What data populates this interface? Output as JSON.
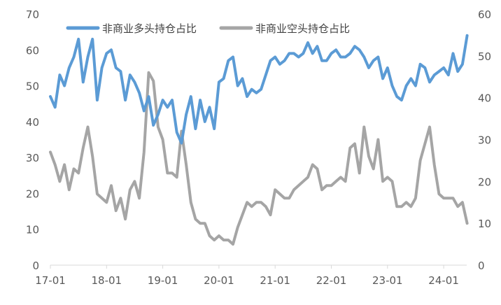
{
  "chart_data": {
    "type": "line",
    "x_ticks": [
      "17-01",
      "18-01",
      "19-01",
      "20-01",
      "21-01",
      "22-01",
      "23-01",
      "24-01"
    ],
    "y_left": {
      "ticks": [
        0,
        10,
        20,
        30,
        40,
        50,
        60,
        70
      ],
      "min": 0,
      "max": 70
    },
    "y_right": {
      "ticks": [
        0,
        10,
        20,
        30,
        40,
        50,
        60
      ],
      "min": 0,
      "max": 60
    },
    "legend_position": "top-center",
    "grid": false,
    "series": [
      {
        "name": "非商业多头持仓占比",
        "axis": "left",
        "color": "#5B9BD5",
        "x": [
          "2017-01",
          "2017-02",
          "2017-03",
          "2017-04",
          "2017-05",
          "2017-06",
          "2017-07",
          "2017-08",
          "2017-09",
          "2017-10",
          "2017-11",
          "2017-12",
          "2018-01",
          "2018-02",
          "2018-03",
          "2018-04",
          "2018-05",
          "2018-06",
          "2018-07",
          "2018-08",
          "2018-09",
          "2018-10",
          "2018-11",
          "2018-12",
          "2019-01",
          "2019-02",
          "2019-03",
          "2019-04",
          "2019-05",
          "2019-06",
          "2019-07",
          "2019-08",
          "2019-09",
          "2019-10",
          "2019-11",
          "2019-12",
          "2020-01",
          "2020-02",
          "2020-03",
          "2020-04",
          "2020-05",
          "2020-06",
          "2020-07",
          "2020-08",
          "2020-09",
          "2020-10",
          "2020-11",
          "2020-12",
          "2021-01",
          "2021-02",
          "2021-03",
          "2021-04",
          "2021-05",
          "2021-06",
          "2021-07",
          "2021-08",
          "2021-09",
          "2021-10",
          "2021-11",
          "2021-12",
          "2022-01",
          "2022-02",
          "2022-03",
          "2022-04",
          "2022-05",
          "2022-06",
          "2022-07",
          "2022-08",
          "2022-09",
          "2022-10",
          "2022-11",
          "2022-12",
          "2023-01",
          "2023-02",
          "2023-03",
          "2023-04",
          "2023-05",
          "2023-06",
          "2023-07",
          "2023-08",
          "2023-09",
          "2023-10",
          "2023-11",
          "2023-12",
          "2024-01",
          "2024-02",
          "2024-03",
          "2024-04",
          "2024-05",
          "2024-06"
        ],
        "values": [
          47,
          44,
          53,
          50,
          55,
          58,
          63,
          51,
          58,
          63,
          46,
          55,
          59,
          60,
          55,
          54,
          46,
          53,
          51,
          48,
          43,
          47,
          39,
          42,
          46,
          44,
          46,
          37,
          34,
          42,
          47,
          38,
          46,
          40,
          44,
          38,
          51,
          52,
          57,
          58,
          50,
          52,
          47,
          49,
          48,
          49,
          53,
          57,
          58,
          56,
          57,
          59,
          59,
          58,
          59,
          62,
          59,
          61,
          57,
          57,
          59,
          60,
          58,
          58,
          59,
          61,
          60,
          58,
          55,
          57,
          58,
          52,
          55,
          50,
          47,
          46,
          50,
          52,
          50,
          56,
          55,
          51,
          53,
          54,
          55,
          53,
          59,
          54,
          56,
          64
        ]
      },
      {
        "name": "非商业空头持仓占比",
        "axis": "right",
        "color": "#A5A5A5",
        "x": [
          "2017-01",
          "2017-02",
          "2017-03",
          "2017-04",
          "2017-05",
          "2017-06",
          "2017-07",
          "2017-08",
          "2017-09",
          "2017-10",
          "2017-11",
          "2017-12",
          "2018-01",
          "2018-02",
          "2018-03",
          "2018-04",
          "2018-05",
          "2018-06",
          "2018-07",
          "2018-08",
          "2018-09",
          "2018-10",
          "2018-11",
          "2018-12",
          "2019-01",
          "2019-02",
          "2019-03",
          "2019-04",
          "2019-05",
          "2019-06",
          "2019-07",
          "2019-08",
          "2019-09",
          "2019-10",
          "2019-11",
          "2019-12",
          "2020-01",
          "2020-02",
          "2020-03",
          "2020-04",
          "2020-05",
          "2020-06",
          "2020-07",
          "2020-08",
          "2020-09",
          "2020-10",
          "2020-11",
          "2020-12",
          "2021-01",
          "2021-02",
          "2021-03",
          "2021-04",
          "2021-05",
          "2021-06",
          "2021-07",
          "2021-08",
          "2021-09",
          "2021-10",
          "2021-11",
          "2021-12",
          "2022-01",
          "2022-02",
          "2022-03",
          "2022-04",
          "2022-05",
          "2022-06",
          "2022-07",
          "2022-08",
          "2022-09",
          "2022-10",
          "2022-11",
          "2022-12",
          "2023-01",
          "2023-02",
          "2023-03",
          "2023-04",
          "2023-05",
          "2023-06",
          "2023-07",
          "2023-08",
          "2023-09",
          "2023-10",
          "2023-11",
          "2023-12",
          "2024-01",
          "2024-02",
          "2024-03",
          "2024-04",
          "2024-05",
          "2024-06"
        ],
        "values": [
          27,
          24,
          20,
          24,
          18,
          23,
          22,
          28,
          33,
          26,
          17,
          16,
          15,
          19,
          13,
          16,
          11,
          18,
          20,
          16,
          27,
          46,
          44,
          33,
          30,
          22,
          22,
          21,
          32,
          24,
          15,
          11,
          10,
          10,
          7,
          6,
          7,
          6,
          6,
          5,
          9,
          12,
          15,
          14,
          15,
          15,
          14,
          12,
          18,
          17,
          16,
          16,
          18,
          19,
          20,
          21,
          24,
          23,
          18,
          19,
          19,
          20,
          21,
          20,
          28,
          29,
          22,
          33,
          26,
          23,
          30,
          20,
          21,
          20,
          14,
          14,
          15,
          14,
          16,
          25,
          29,
          33,
          24,
          17,
          16,
          16,
          16,
          14,
          15,
          10
        ]
      }
    ]
  }
}
